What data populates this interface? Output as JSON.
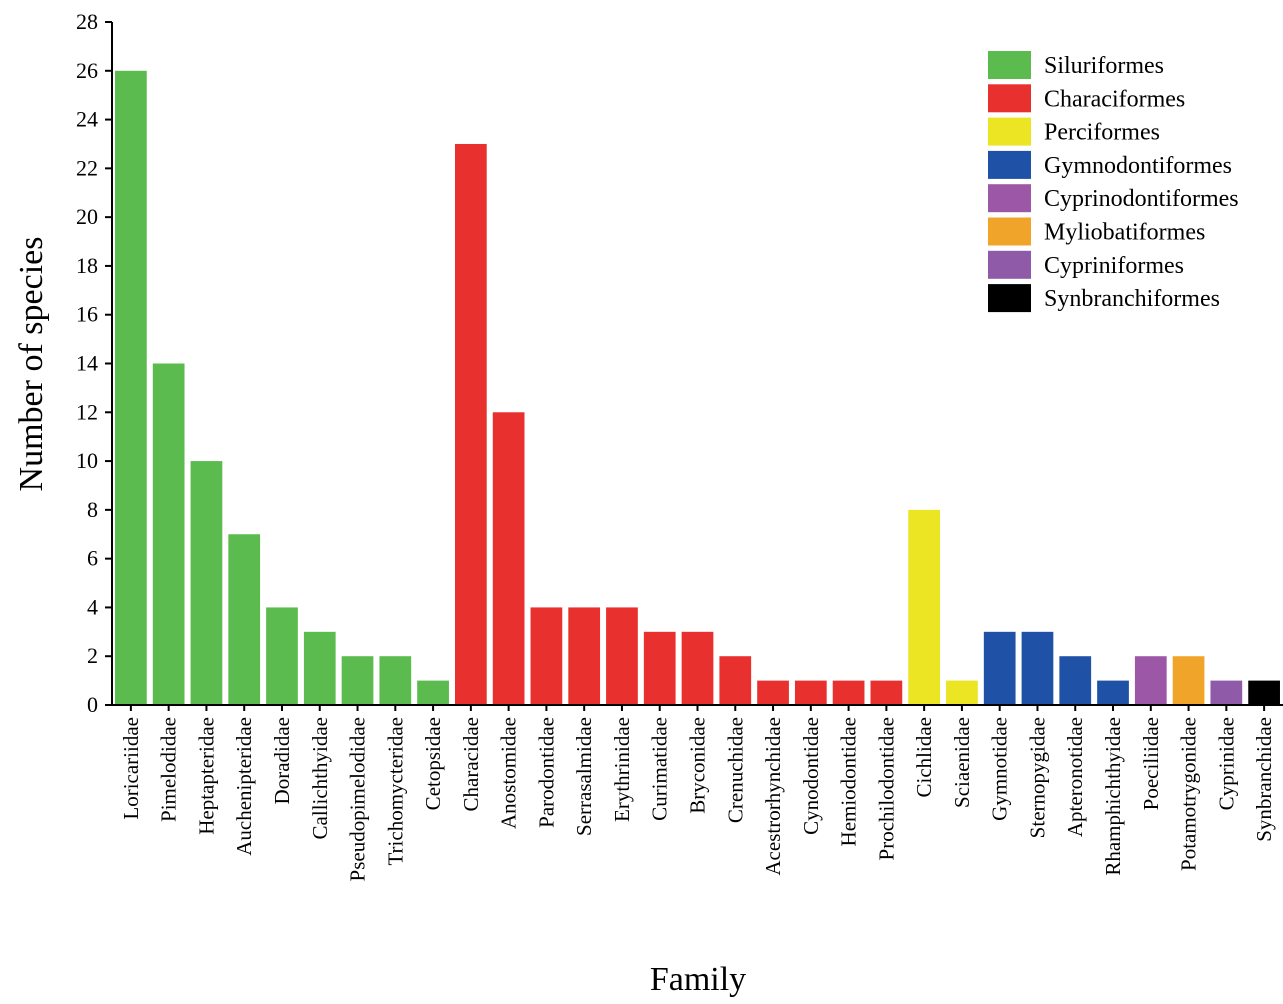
{
  "chart_data": {
    "type": "bar",
    "xlabel": "Family",
    "ylabel": "Number of species",
    "ylim": [
      0,
      28
    ],
    "yticks": [
      0,
      2,
      4,
      6,
      8,
      10,
      12,
      14,
      16,
      18,
      20,
      22,
      24,
      26,
      28
    ],
    "grid": false,
    "legend_position": "top-right",
    "categories": [
      "Loricariidae",
      "Pimelodidae",
      "Heptapteridae",
      "Auchenipteridae",
      "Doradidae",
      "Callichthyidae",
      "Pseudopimelodidae",
      "Trichomycteridae",
      "Cetopsidae",
      "Characidae",
      "Anostomidae",
      "Parodontidae",
      "Serrasalmidae",
      "Erythrinidae",
      "Curimatidae",
      "Bryconidae",
      "Crenuchidae",
      "Acestrorhynchidae",
      "Cynodontidae",
      "Hemiodontidae",
      "Prochilodontidae",
      "Cichlidae",
      "Sciaenidae",
      "Gymnotidae",
      "Sternopygidae",
      "Apteronotidae",
      "Rhamphichthyidae",
      "Poeciliidae",
      "Potamotrygonidae",
      "Cyprinidae",
      "Synbranchidae"
    ],
    "values": [
      26,
      14,
      10,
      7,
      4,
      3,
      2,
      2,
      1,
      23,
      12,
      4,
      4,
      4,
      3,
      3,
      2,
      1,
      1,
      1,
      1,
      8,
      1,
      3,
      3,
      2,
      1,
      2,
      2,
      1,
      1
    ],
    "order_of_bar": [
      0,
      0,
      0,
      0,
      0,
      0,
      0,
      0,
      0,
      1,
      1,
      1,
      1,
      1,
      1,
      1,
      1,
      1,
      1,
      1,
      1,
      2,
      2,
      3,
      3,
      3,
      3,
      4,
      5,
      6,
      7
    ],
    "legend": [
      {
        "name": "Siluriformes",
        "color": "#5cbb4e"
      },
      {
        "name": "Characiformes",
        "color": "#e8302f"
      },
      {
        "name": "Perciformes",
        "color": "#ebe524"
      },
      {
        "name": "Gymnodontiformes",
        "color": "#1f51a6"
      },
      {
        "name": "Cyprinodontiformes",
        "color": "#9c58a6"
      },
      {
        "name": "Myliobatiformes",
        "color": "#f0a52a"
      },
      {
        "name": "Cypriniformes",
        "color": "#8f5aa8"
      },
      {
        "name": "Synbranchiformes",
        "color": "#000000"
      }
    ]
  }
}
